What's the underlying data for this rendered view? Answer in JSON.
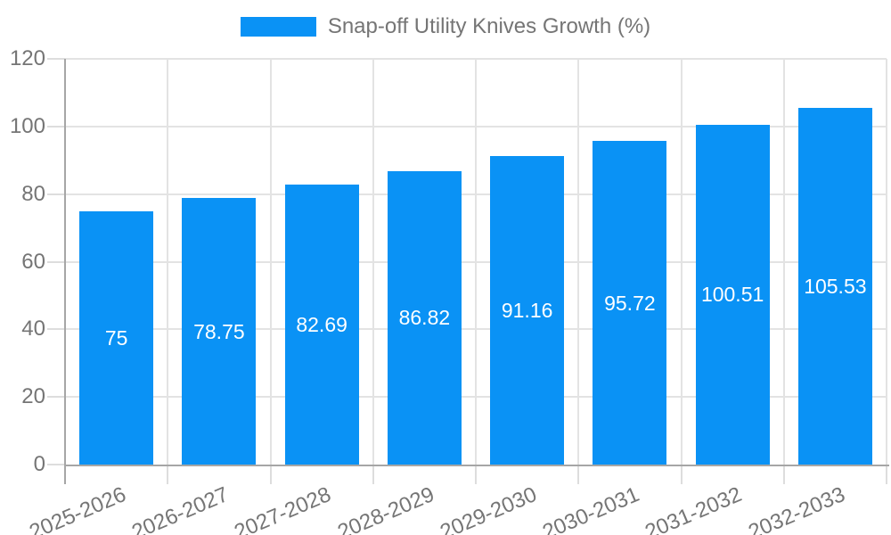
{
  "legend": {
    "label": "Snap-off Utility Knives Growth (%)"
  },
  "chart_data": {
    "type": "bar",
    "title": "Snap-off Utility Knives Growth (%)",
    "categories": [
      "2025-2026",
      "2026-2027",
      "2027-2028",
      "2028-2029",
      "2029-2030",
      "2030-2031",
      "2031-2032",
      "2032-2033"
    ],
    "values": [
      75,
      78.75,
      82.69,
      86.82,
      91.16,
      95.72,
      100.51,
      105.53
    ],
    "xlabel": "",
    "ylabel": "",
    "ylim": [
      0,
      120
    ],
    "yticks": [
      0,
      20,
      40,
      60,
      80,
      100,
      120
    ],
    "grid": true,
    "legend_position": "top-center",
    "bar_color": "#0a92f5",
    "label_color": "#757575",
    "value_label_color": "#ffffff",
    "grid_color": "#e3e3e3",
    "axis_color": "#a6a6a6"
  }
}
